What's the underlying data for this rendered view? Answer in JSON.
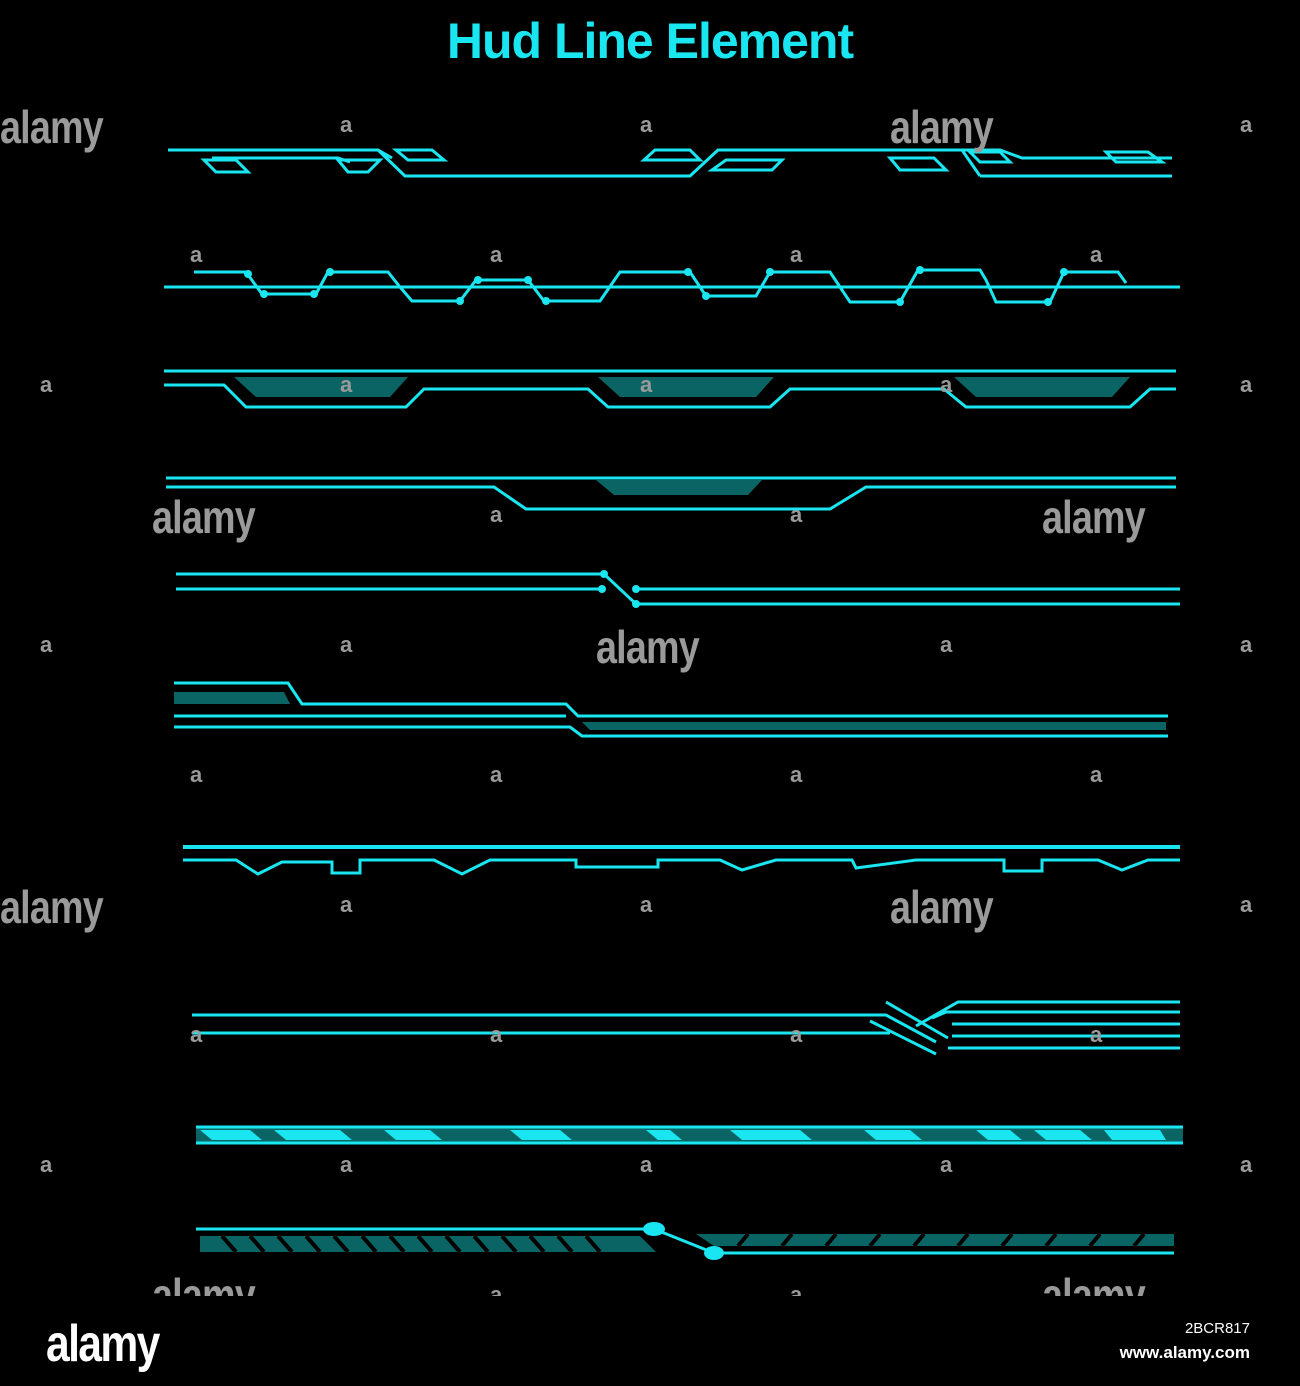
{
  "title": "Hud Line Element",
  "colors": {
    "accent": "#19e6f0",
    "fill": "#0b6464",
    "background": "#000000",
    "watermark": "#9a9a9a"
  },
  "watermark": {
    "text": "alamy",
    "small": "a"
  },
  "footer": {
    "logo": "alamy",
    "image_id": "2BCR817",
    "site": "www.alamy.com"
  }
}
